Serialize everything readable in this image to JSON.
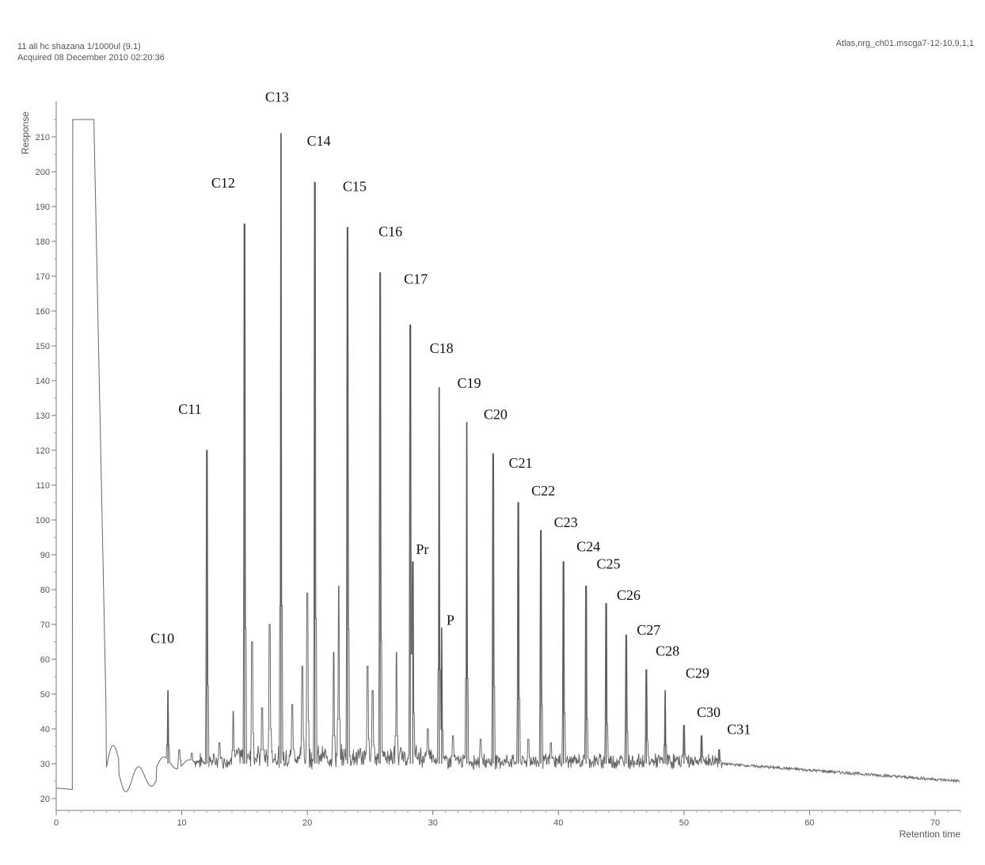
{
  "header": {
    "sample_line": "11 ali hc shazana 1/1000ul (9.1)",
    "acquired_line": "Acquired 08 December 2010 02:20:36",
    "file_line": "Atlas,nrg_ch01.mscga7-12-10,9,1,1"
  },
  "chart_data": {
    "type": "line",
    "title": "",
    "xlabel": "Retention time",
    "ylabel": "Response",
    "xlim": [
      0,
      72
    ],
    "ylim": [
      18,
      220
    ],
    "x_ticks": [
      0,
      10,
      20,
      30,
      40,
      50,
      60,
      70
    ],
    "y_ticks": [
      20,
      30,
      40,
      50,
      60,
      70,
      80,
      90,
      100,
      110,
      120,
      130,
      140,
      150,
      160,
      170,
      180,
      190,
      200,
      210
    ],
    "grid": false,
    "baseline": 30,
    "peaks": [
      {
        "label": "C10",
        "rt": 8.9,
        "response": 51
      },
      {
        "label": "C11",
        "rt": 12.0,
        "response": 120
      },
      {
        "label": "C12",
        "rt": 15.0,
        "response": 185
      },
      {
        "label": "C13",
        "rt": 17.9,
        "response": 211
      },
      {
        "label": "C14",
        "rt": 20.6,
        "response": 197
      },
      {
        "label": "C15",
        "rt": 23.2,
        "response": 184
      },
      {
        "label": "C16",
        "rt": 25.8,
        "response": 171
      },
      {
        "label": "C17",
        "rt": 28.2,
        "response": 156
      },
      {
        "label": "Pr",
        "rt": 28.4,
        "response": 88
      },
      {
        "label": "C18",
        "rt": 30.5,
        "response": 138
      },
      {
        "label": "P",
        "rt": 30.7,
        "response": 69
      },
      {
        "label": "C19",
        "rt": 32.7,
        "response": 128
      },
      {
        "label": "C20",
        "rt": 34.8,
        "response": 119
      },
      {
        "label": "C21",
        "rt": 36.8,
        "response": 105
      },
      {
        "label": "C22",
        "rt": 38.6,
        "response": 97
      },
      {
        "label": "C23",
        "rt": 40.4,
        "response": 88
      },
      {
        "label": "C24",
        "rt": 42.2,
        "response": 81
      },
      {
        "label": "C25",
        "rt": 43.8,
        "response": 76
      },
      {
        "label": "C26",
        "rt": 45.4,
        "response": 67
      },
      {
        "label": "C27",
        "rt": 47.0,
        "response": 57
      },
      {
        "label": "C28",
        "rt": 48.5,
        "response": 51
      },
      {
        "label": "C29",
        "rt": 50.0,
        "response": 41
      },
      {
        "label": "C30",
        "rt": 51.4,
        "response": 38
      },
      {
        "label": "C31",
        "rt": 52.8,
        "response": 34
      }
    ],
    "minor_peaks": [
      {
        "rt": 9.8,
        "response": 34
      },
      {
        "rt": 10.8,
        "response": 33
      },
      {
        "rt": 13.0,
        "response": 36
      },
      {
        "rt": 14.1,
        "response": 45
      },
      {
        "rt": 15.6,
        "response": 65
      },
      {
        "rt": 16.4,
        "response": 46
      },
      {
        "rt": 17.0,
        "response": 70
      },
      {
        "rt": 18.8,
        "response": 47
      },
      {
        "rt": 19.6,
        "response": 58
      },
      {
        "rt": 20.0,
        "response": 79
      },
      {
        "rt": 22.1,
        "response": 62
      },
      {
        "rt": 22.5,
        "response": 81
      },
      {
        "rt": 24.8,
        "response": 58
      },
      {
        "rt": 25.2,
        "response": 51
      },
      {
        "rt": 27.1,
        "response": 62
      },
      {
        "rt": 29.6,
        "response": 40
      },
      {
        "rt": 31.6,
        "response": 38
      },
      {
        "rt": 33.8,
        "response": 37
      },
      {
        "rt": 37.6,
        "response": 37
      },
      {
        "rt": 39.4,
        "response": 36
      }
    ]
  }
}
